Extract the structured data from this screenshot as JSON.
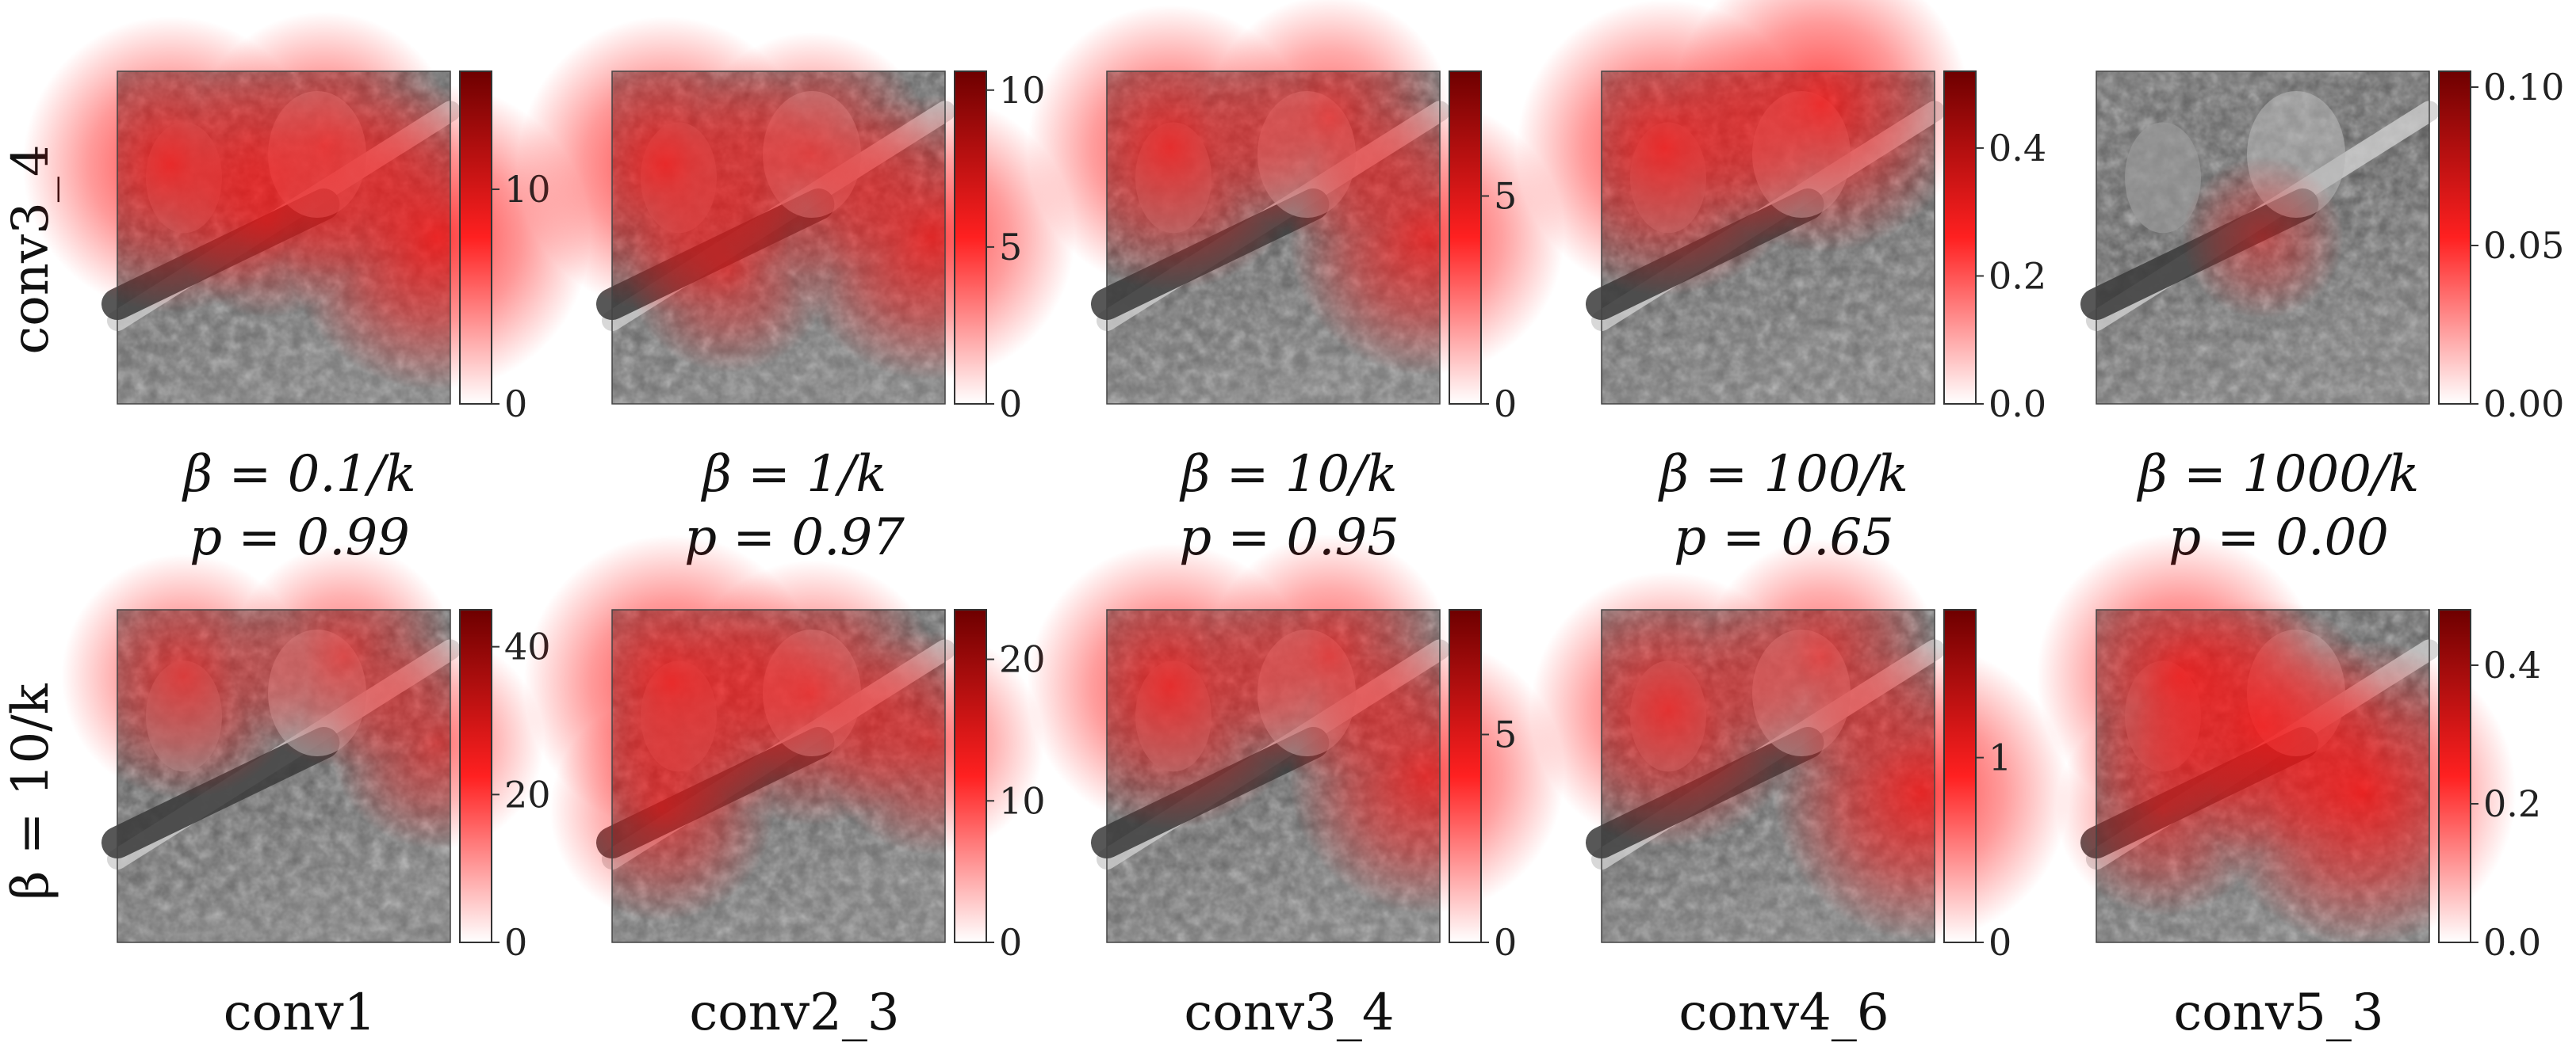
{
  "chart_data": {
    "type": "heatmap",
    "colormap": {
      "low": "#ffffff",
      "mid": "#ff2020",
      "high": "#6e0000"
    },
    "row_labels": [
      "conv3_4",
      "β = 10/k"
    ],
    "panels": [
      {
        "row": 0,
        "col": 0,
        "caption_lines": [
          "β = 0.1/k",
          "p = 0.99"
        ],
        "colorbar": {
          "min": 0,
          "max": 15.5,
          "ticks": [
            "0",
            "10"
          ],
          "tick_values": [
            0,
            10
          ]
        },
        "hotspots": [
          [
            0.16,
            0.28,
            0.9
          ],
          [
            0.62,
            0.22,
            0.75
          ],
          [
            0.96,
            0.5,
            0.95
          ],
          [
            0.45,
            0.45,
            0.4
          ]
        ]
      },
      {
        "row": 0,
        "col": 1,
        "caption_lines": [
          "β = 1/k",
          "p = 0.97"
        ],
        "colorbar": {
          "min": 0,
          "max": 10.6,
          "ticks": [
            "0",
            "5",
            "10"
          ],
          "tick_values": [
            0,
            5,
            10
          ]
        },
        "hotspots": [
          [
            0.16,
            0.28,
            0.9
          ],
          [
            0.6,
            0.25,
            0.65
          ],
          [
            0.96,
            0.5,
            0.85
          ],
          [
            0.35,
            0.6,
            0.45
          ]
        ]
      },
      {
        "row": 0,
        "col": 2,
        "caption_lines": [
          "β = 10/k",
          "p = 0.95"
        ],
        "colorbar": {
          "min": 0,
          "max": 8,
          "ticks": [
            "0",
            "5"
          ],
          "tick_values": [
            0,
            5
          ]
        },
        "hotspots": [
          [
            0.19,
            0.23,
            0.85
          ],
          [
            0.67,
            0.14,
            0.65
          ],
          [
            0.96,
            0.5,
            0.8
          ]
        ]
      },
      {
        "row": 0,
        "col": 3,
        "caption_lines": [
          "β = 100/k",
          "p = 0.65"
        ],
        "colorbar": {
          "min": 0,
          "max": 0.52,
          "ticks": [
            "0.0",
            "0.2",
            "0.4"
          ],
          "tick_values": [
            0,
            0.2,
            0.4
          ]
        },
        "hotspots": [
          [
            0.19,
            0.23,
            0.9
          ],
          [
            0.66,
            0.1,
            0.9
          ]
        ]
      },
      {
        "row": 0,
        "col": 4,
        "caption_lines": [
          "β = 1000/k",
          "p = 0.00"
        ],
        "colorbar": {
          "min": 0,
          "max": 0.105,
          "ticks": [
            "0.00",
            "0.05",
            "0.10"
          ],
          "tick_values": [
            0,
            0.05,
            0.1
          ]
        },
        "hotspots": [
          [
            0.5,
            0.5,
            0.25
          ]
        ]
      },
      {
        "row": 1,
        "col": 0,
        "caption_lines": [
          "conv1"
        ],
        "colorbar": {
          "min": 0,
          "max": 45,
          "ticks": [
            "0",
            "20",
            "40"
          ],
          "tick_values": [
            0,
            20,
            40
          ]
        },
        "hotspots": [
          [
            0.2,
            0.2,
            0.65
          ],
          [
            0.68,
            0.14,
            0.55
          ],
          [
            0.96,
            0.4,
            0.5
          ]
        ]
      },
      {
        "row": 1,
        "col": 1,
        "caption_lines": [
          "conv2_3"
        ],
        "colorbar": {
          "min": 0,
          "max": 23.5,
          "ticks": [
            "0",
            "10",
            "20"
          ],
          "tick_values": [
            0,
            10,
            20
          ]
        },
        "hotspots": [
          [
            0.18,
            0.22,
            0.9
          ],
          [
            0.6,
            0.25,
            0.75
          ],
          [
            0.15,
            0.6,
            0.55
          ],
          [
            0.96,
            0.4,
            0.55
          ]
        ]
      },
      {
        "row": 1,
        "col": 2,
        "caption_lines": [
          "conv3_4"
        ],
        "colorbar": {
          "min": 0,
          "max": 8,
          "ticks": [
            "0",
            "5"
          ],
          "tick_values": [
            0,
            5
          ]
        },
        "hotspots": [
          [
            0.19,
            0.23,
            0.85
          ],
          [
            0.67,
            0.14,
            0.65
          ],
          [
            0.96,
            0.5,
            0.8
          ]
        ]
      },
      {
        "row": 1,
        "col": 3,
        "caption_lines": [
          "conv4_6"
        ],
        "colorbar": {
          "min": 0,
          "max": 1.8,
          "ticks": [
            "0",
            "1"
          ],
          "tick_values": [
            0,
            1
          ]
        },
        "hotspots": [
          [
            0.2,
            0.3,
            0.8
          ],
          [
            0.66,
            0.14,
            0.6
          ],
          [
            0.96,
            0.55,
            0.9
          ]
        ]
      },
      {
        "row": 1,
        "col": 4,
        "caption_lines": [
          "conv5_3"
        ],
        "colorbar": {
          "min": 0,
          "max": 0.48,
          "ticks": [
            "0.0",
            "0.2",
            "0.4"
          ],
          "tick_values": [
            0,
            0.2,
            0.4
          ]
        },
        "hotspots": [
          [
            0.25,
            0.2,
            0.85
          ],
          [
            0.8,
            0.55,
            0.95
          ],
          [
            0.5,
            0.35,
            0.7
          ],
          [
            0.2,
            0.6,
            0.5
          ]
        ]
      }
    ]
  }
}
